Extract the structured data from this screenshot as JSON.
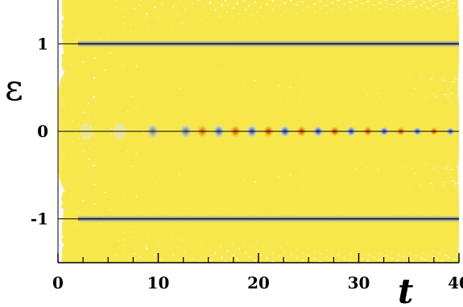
{
  "chart_data": {
    "type": "heatmap",
    "title": "",
    "xlabel": "t",
    "ylabel": "ε",
    "xlim": [
      0,
      40
    ],
    "ylim": [
      -1.5,
      1.5
    ],
    "x_ticks": [
      0,
      10,
      20,
      30,
      40
    ],
    "x_tick_labels": [
      "0",
      "10",
      "20",
      "30",
      "40"
    ],
    "x_minor_ticks": [
      2.5,
      5,
      7.5,
      12.5,
      15,
      17.5,
      22.5,
      25,
      27.5,
      32.5,
      35,
      37.5
    ],
    "y_ticks": [
      1,
      0,
      -1
    ],
    "y_tick_labels": [
      "1",
      "0",
      "-1"
    ],
    "reference_lines_y": [
      1,
      0,
      -1
    ],
    "grid": false,
    "colormap": {
      "negative": "#1e3a8c",
      "negative_mid": "#9fb2d4",
      "zero": "#ffffff",
      "positive_low": "#f7e74a",
      "positive_mid": "#f2b21c",
      "positive_high": "#d8281c"
    },
    "features": {
      "central_band_oscillation_period": 3.3,
      "hyperbolic_fringes": true,
      "edge_band_levels": [
        1,
        -1
      ]
    }
  }
}
